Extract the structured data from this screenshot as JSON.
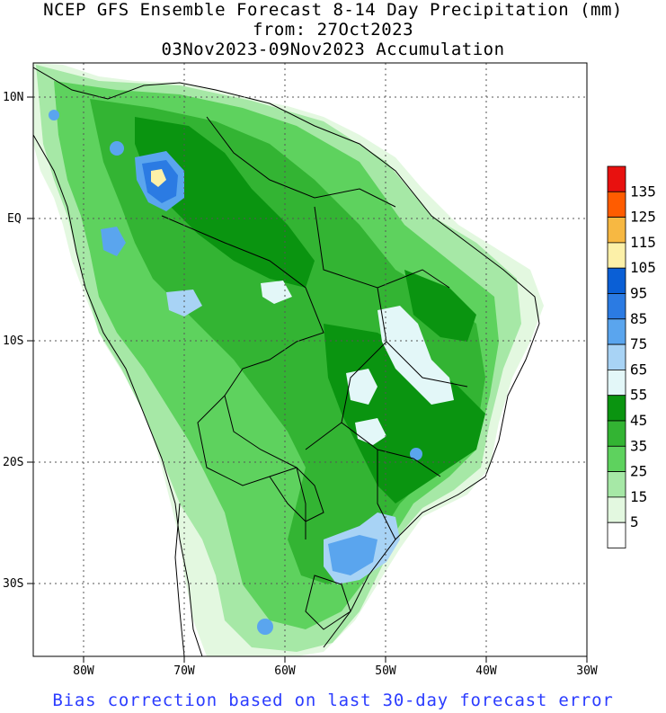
{
  "title": {
    "line1": "NCEP GFS Ensemble Forecast 8-14 Day Precipitation (mm)",
    "line2": "from: 27Oct2023",
    "line3": "03Nov2023-09Nov2023 Accumulation"
  },
  "footer": "Bias correction based on last 30-day forecast error",
  "axes": {
    "lat_labels": [
      "10N",
      "EQ",
      "10S",
      "20S",
      "30S"
    ],
    "lon_labels": [
      "80W",
      "70W",
      "60W",
      "50W",
      "40W",
      "30W"
    ]
  },
  "legend": {
    "levels": [
      "135",
      "125",
      "115",
      "105",
      "95",
      "85",
      "75",
      "65",
      "55",
      "45",
      "35",
      "25",
      "15",
      "5"
    ],
    "colors": [
      "#e8110f",
      "#ff5c00",
      "#f7b842",
      "#fcf0a8",
      "#0a5fd6",
      "#2b7be3",
      "#5aa5ee",
      "#a8d3f5",
      "#e3f7f8",
      "#0a9410",
      "#33b433",
      "#5ed25e",
      "#a6e8a6",
      "#e3f8e0",
      "#ffffff"
    ]
  },
  "chart_data": {
    "type": "heatmap",
    "title": "NCEP GFS Ensemble Forecast 8-14 Day Precipitation (mm)",
    "subtitle": "from: 27Oct2023 / 03Nov2023-09Nov2023 Accumulation",
    "units": "mm",
    "xlim": [
      -85,
      -30
    ],
    "ylim": [
      -36,
      13
    ],
    "x_ticks": [
      "80W",
      "70W",
      "60W",
      "50W",
      "40W",
      "30W"
    ],
    "y_ticks": [
      "10N",
      "EQ",
      "10S",
      "20S",
      "30S"
    ],
    "color_levels": [
      5,
      15,
      25,
      35,
      45,
      55,
      65,
      75,
      85,
      95,
      105,
      115,
      125,
      135
    ],
    "grid": true
  }
}
